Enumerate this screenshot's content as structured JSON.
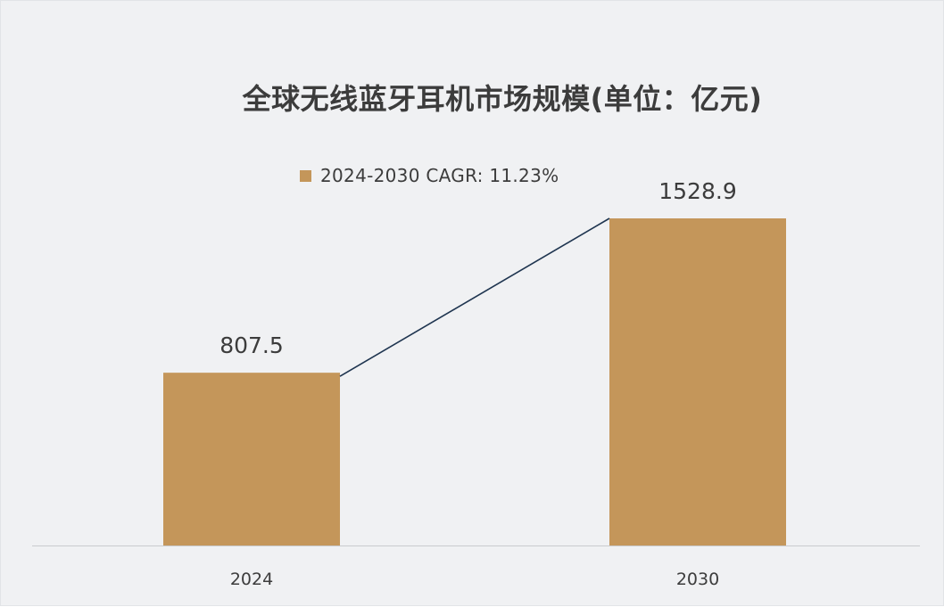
{
  "chart_data": {
    "type": "bar",
    "title": "全球无线蓝牙耳机市场规模(单位：亿元)",
    "categories": [
      "2024",
      "2030"
    ],
    "series": [
      {
        "name": "2024-2030 CAGR: 11.23%",
        "values": [
          807.5,
          1528.9
        ]
      }
    ],
    "data_labels": [
      "807.5",
      "1528.9"
    ],
    "ylim": [
      0,
      1700
    ],
    "grid": false,
    "legend_position": "top",
    "has_connector_line": true,
    "colors": {
      "bar": "#c4965a",
      "connector": "#1f3550",
      "text": "#3c3c3c",
      "axis": "#c9cbce",
      "background": "#f0f1f3"
    }
  }
}
